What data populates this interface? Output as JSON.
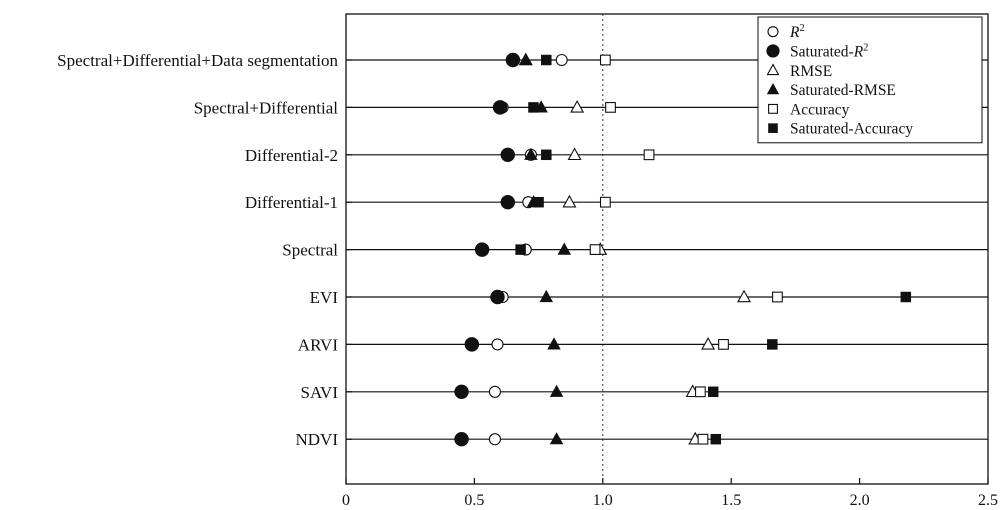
{
  "chart_data": {
    "type": "scatter",
    "title": "",
    "xlabel": "",
    "ylabel": "",
    "xlim": [
      0,
      2.5
    ],
    "x_ticks": [
      0,
      0.5,
      1.0,
      1.5,
      2.0,
      2.5
    ],
    "x_tick_labels": [
      "0",
      "0.5",
      "1.0",
      "1.5",
      "2.0",
      "2.5"
    ],
    "reference_line": {
      "x": 1.0,
      "style": "dotted"
    },
    "grid": false,
    "legend_position": "top-right",
    "categories": [
      "Spectral+Differential+Data segmentation",
      "Spectral+Differential",
      "Differential-2",
      "Differential-1",
      "Spectral",
      "EVI",
      "ARVI",
      "SAVI",
      "NDVI"
    ],
    "series": [
      {
        "name": "R²",
        "name_base": "R",
        "name_sup": "2",
        "marker": "circle",
        "filled": false,
        "values": [
          0.84,
          0.61,
          0.72,
          0.71,
          0.7,
          0.61,
          0.59,
          0.58,
          0.58
        ]
      },
      {
        "name": "Saturated-R²",
        "name_base": "Saturated-R",
        "name_sup": "2",
        "marker": "circle",
        "filled": true,
        "values": [
          0.65,
          0.6,
          0.63,
          0.63,
          0.53,
          0.59,
          0.49,
          0.45,
          0.45
        ]
      },
      {
        "name": "RMSE",
        "marker": "triangle",
        "filled": false,
        "values": [
          0.7,
          0.9,
          0.89,
          0.87,
          0.99,
          1.55,
          1.41,
          1.35,
          1.36
        ]
      },
      {
        "name": "Saturated-RMSE",
        "marker": "triangle",
        "filled": true,
        "values": [
          0.7,
          0.76,
          0.72,
          0.73,
          0.85,
          0.78,
          0.81,
          0.82,
          0.82
        ]
      },
      {
        "name": "Accuracy",
        "marker": "square",
        "filled": false,
        "values": [
          1.01,
          1.03,
          1.18,
          1.01,
          0.97,
          1.68,
          1.47,
          1.38,
          1.39
        ]
      },
      {
        "name": "Saturated-Accuracy",
        "marker": "square",
        "filled": true,
        "values": [
          0.78,
          0.73,
          0.78,
          0.75,
          0.68,
          2.18,
          1.66,
          1.43,
          1.44
        ]
      }
    ]
  }
}
